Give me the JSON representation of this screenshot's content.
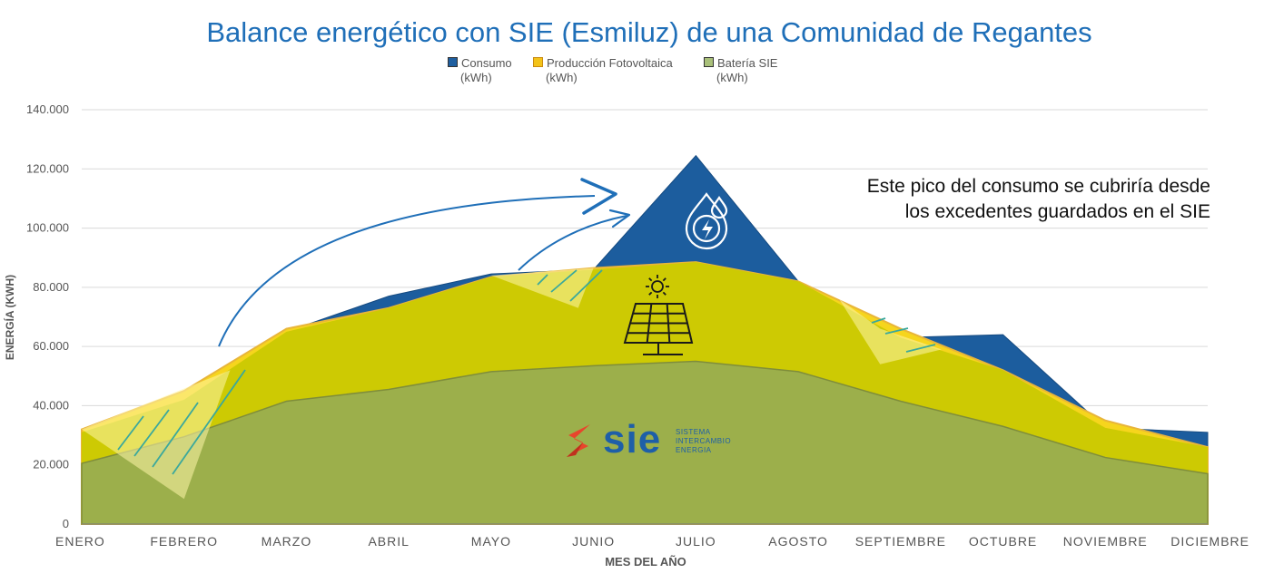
{
  "chart_data": {
    "type": "area",
    "title": "Balance energético con SIE (Esmiluz) de una Comunidad de Regantes",
    "xlabel": "MES DEL AÑO",
    "ylabel": "ENERGÍA (KWH)",
    "ylim": [
      0,
      140000
    ],
    "yticks": [
      0,
      20000,
      40000,
      60000,
      80000,
      100000,
      120000,
      140000
    ],
    "ytick_labels": [
      "0",
      "20.000",
      "40.000",
      "60.000",
      "80.000",
      "100.000",
      "120.000",
      "140.000"
    ],
    "categories": [
      "ENERO",
      "FEBRERO",
      "MARZO",
      "ABRIL",
      "MAYO",
      "JUNIO",
      "JULIO",
      "AGOSTO",
      "SEPTIEMBRE",
      "OCTUBRE",
      "NOVIEMBRE",
      "DICIEMBRE"
    ],
    "grid": true,
    "legend_position": "top",
    "series": [
      {
        "name": "Consumo",
        "unit": "(kWh)",
        "color": "#1f5fa0",
        "values": [
          31000,
          42000,
          65000,
          77000,
          84500,
          86000,
          124500,
          82000,
          63000,
          64000,
          32500,
          31000
        ]
      },
      {
        "name": "Producción Fotovoltaica",
        "unit": "(kWh)",
        "color": "#d4cd00",
        "values": [
          32000,
          45000,
          66000,
          73000,
          83500,
          86500,
          88500,
          82000,
          66000,
          52000,
          35000,
          26000
        ]
      },
      {
        "name": "Batería SIE",
        "unit": "(kWh)",
        "color": "#9eb04a",
        "values": [
          20500,
          29500,
          41500,
          45500,
          51500,
          53500,
          55000,
          51500,
          41500,
          33000,
          22500,
          17000
        ]
      }
    ],
    "annotations": [
      "Este pico del consumo se cubriría desde",
      "los excedentes guardados en el SIE"
    ]
  },
  "logo": {
    "name": "sie",
    "lines": [
      "SISTEMA",
      "INTERCAMBIO",
      "ENERGIA"
    ]
  },
  "icons": [
    "water-drop-energy-icon",
    "sun-icon",
    "solar-panel-icon",
    "curved-arrow-icon"
  ]
}
